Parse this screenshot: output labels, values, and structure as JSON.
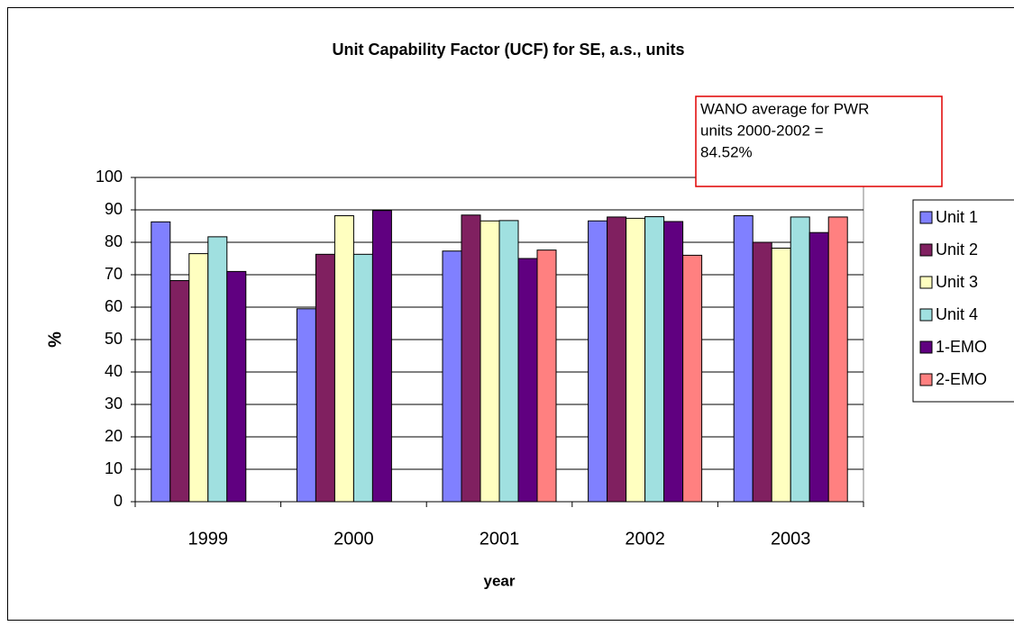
{
  "chart_data": {
    "type": "bar",
    "title": "Unit Capability Factor (UCF) for SE, a.s., units",
    "x_label": "year",
    "y_label": "%",
    "annotation": [
      "WANO average for PWR",
      "units 2000-2002 =",
      "84.52%"
    ],
    "categories": [
      "1999",
      "2000",
      "2001",
      "2002",
      "2003"
    ],
    "series": [
      {
        "name": "Unit 1",
        "color": "#8080ff",
        "values": [
          86.3,
          59.5,
          77.3,
          86.6,
          88.2
        ]
      },
      {
        "name": "Unit 2",
        "color": "#802060",
        "values": [
          68.2,
          76.3,
          88.4,
          87.8,
          80.0
        ]
      },
      {
        "name": "Unit 3",
        "color": "#ffffc0",
        "values": [
          76.5,
          88.2,
          86.6,
          87.4,
          78.2
        ]
      },
      {
        "name": "Unit 4",
        "color": "#a0e0e0",
        "values": [
          81.7,
          76.3,
          86.7,
          87.9,
          87.8
        ]
      },
      {
        "name": "1-EMO",
        "color": "#600080",
        "values": [
          71.0,
          89.8,
          75.0,
          86.4,
          83.0
        ]
      },
      {
        "name": "2-EMO",
        "color": "#ff8080",
        "values": [
          null,
          null,
          77.6,
          76.0,
          87.8
        ]
      }
    ],
    "ylim": [
      0,
      100
    ],
    "yticks": [
      0,
      10,
      20,
      30,
      40,
      50,
      60,
      70,
      80,
      90,
      100
    ],
    "grid": true,
    "legend": "right"
  }
}
